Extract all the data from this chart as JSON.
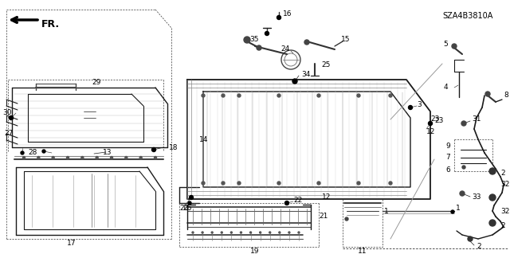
{
  "bg_color": "#ffffff",
  "ref_code": "SZA4B3810A",
  "label_fontsize": 6.5,
  "line_color": "#1a1a1a",
  "gray": "#888888",
  "darkgray": "#555555"
}
